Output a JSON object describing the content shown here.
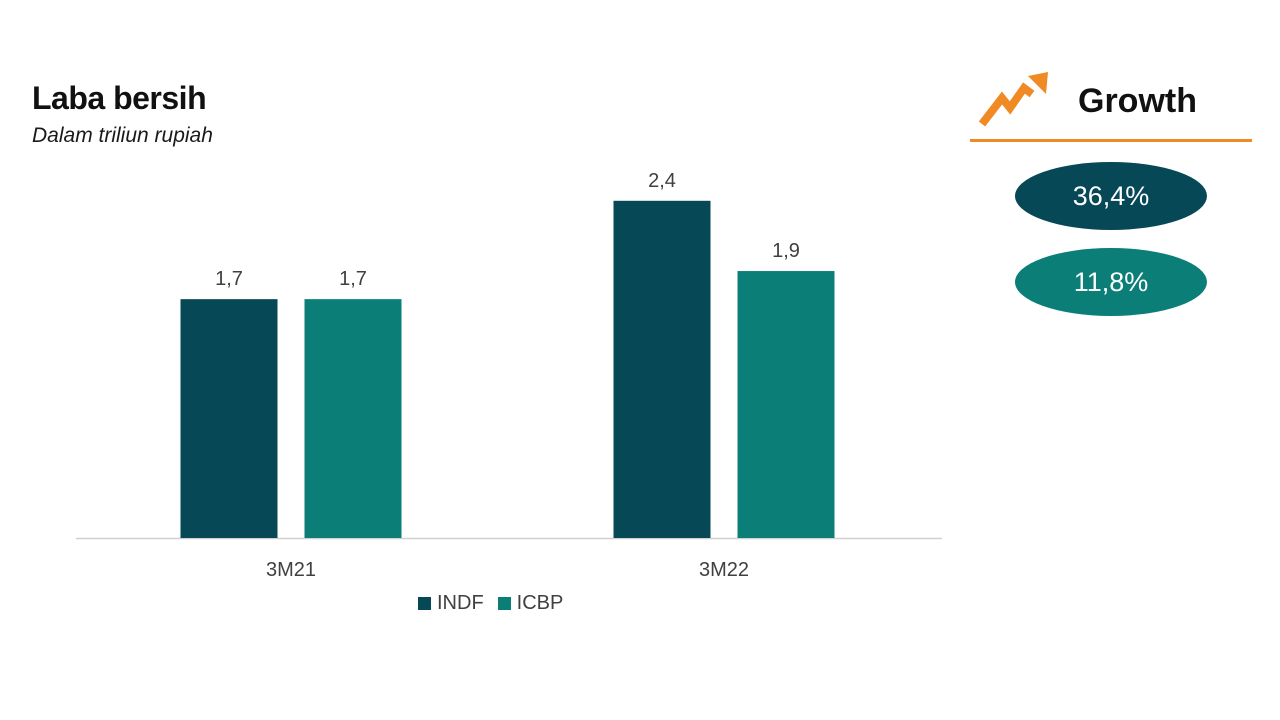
{
  "title": "Laba bersih",
  "subtitle": "Dalam triliun rupiah",
  "colors": {
    "INDF": "#074856",
    "ICBP": "#0b7e78",
    "accent": "#f08a24",
    "axis": "#d0d0d0"
  },
  "chart_data": {
    "type": "bar",
    "categories": [
      "3M21",
      "3M22"
    ],
    "series": [
      {
        "name": "INDF",
        "values": [
          1.7,
          2.4
        ],
        "labels": [
          "1,7",
          "2,4"
        ]
      },
      {
        "name": "ICBP",
        "values": [
          1.7,
          1.9
        ],
        "labels": [
          "1,7",
          "1,9"
        ]
      }
    ],
    "legend_position": "bottom",
    "grid": false,
    "ylim": [
      0,
      2.6
    ]
  },
  "legend": {
    "items": [
      "INDF",
      "ICBP"
    ]
  },
  "growth": {
    "title": "Growth",
    "icon": "trending-up-icon",
    "values": [
      "36,4%",
      "11,8%"
    ]
  }
}
